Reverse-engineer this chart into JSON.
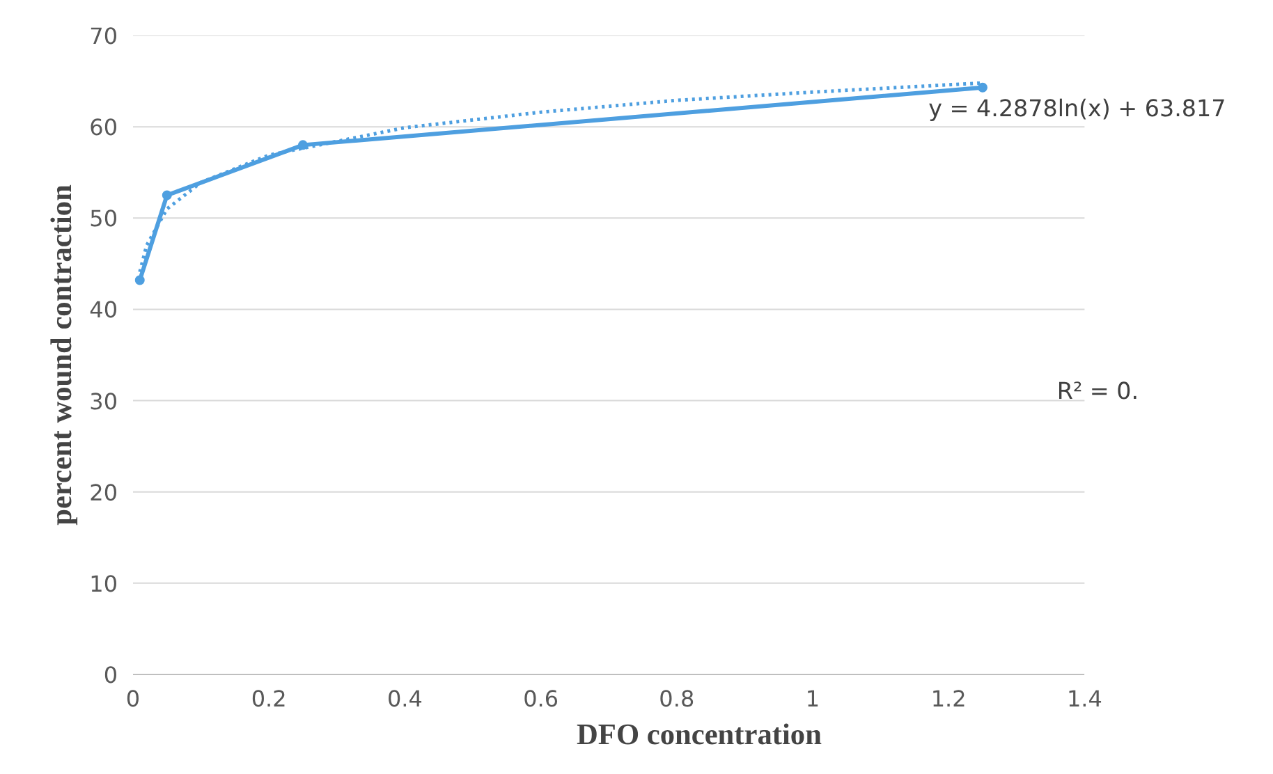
{
  "chart_data": {
    "type": "line",
    "xlabel": "DFO concentration",
    "ylabel": "percent wound contraction",
    "xlim": [
      0,
      1.4
    ],
    "xticks": [
      0,
      0.2,
      0.4,
      0.6,
      0.8,
      1,
      1.2,
      1.4
    ],
    "ylim": [
      0,
      70
    ],
    "yticks": [
      0,
      10,
      20,
      30,
      40,
      50,
      60,
      70
    ],
    "grid": "y",
    "series": [
      {
        "color": "#4e9fe0",
        "marker": "circle",
        "line_style": "solid",
        "x": [
          0.01,
          0.05,
          0.25,
          1.25
        ],
        "values": [
          43.2,
          52.5,
          58,
          64.3
        ]
      },
      {
        "color": "#4e9fe0",
        "marker": "none",
        "line_style": "dotted",
        "x": [
          0.01,
          0.02,
          0.05,
          0.1,
          0.2,
          0.4,
          0.6,
          0.8,
          1.0,
          1.25
        ],
        "values": [
          44.1,
          47.0,
          51.0,
          53.9,
          56.9,
          59.9,
          61.6,
          62.9,
          63.8,
          64.8
        ]
      }
    ],
    "annotations": [
      "y = 4.2878ln(x) + 63.817",
      "R² = 0."
    ]
  }
}
